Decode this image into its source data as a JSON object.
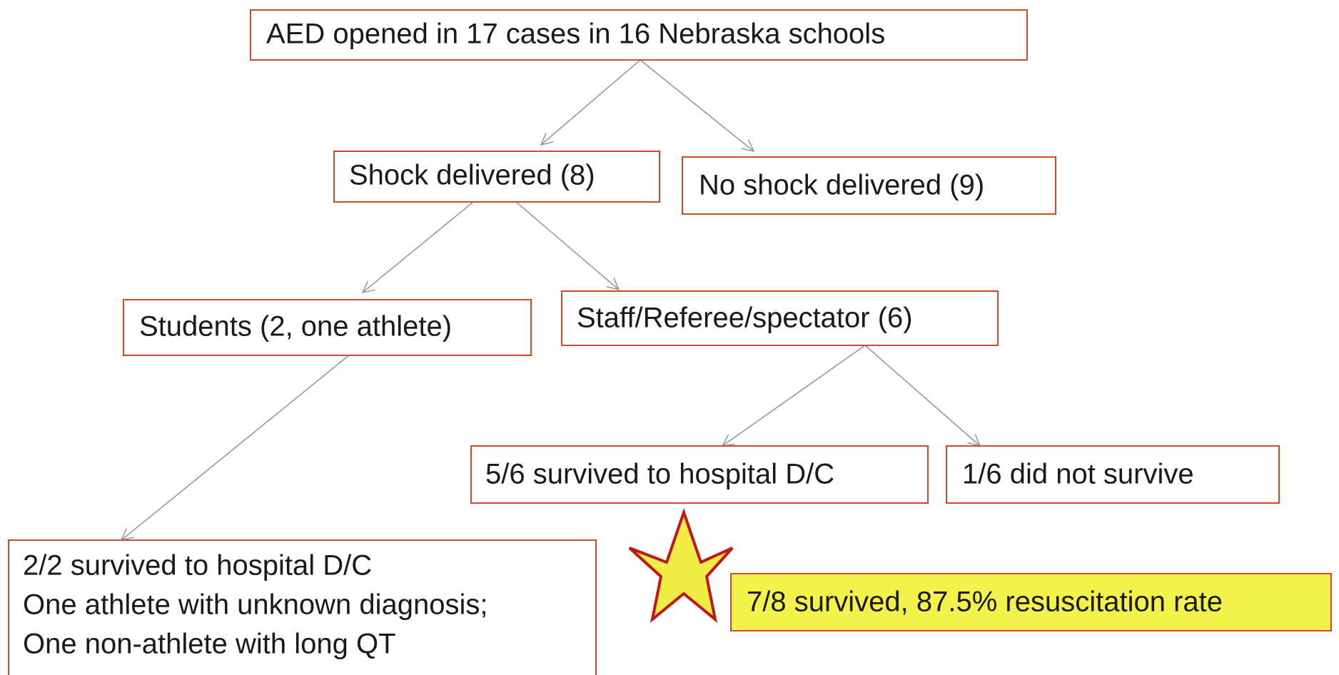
{
  "nodes": [
    {
      "label": "AED opened in 17 cases in 16 Nebraska schools"
    },
    {
      "label": "Shock delivered (8)"
    },
    {
      "label": "No shock delivered (9)"
    },
    {
      "label": "Students (2, one athlete)"
    },
    {
      "label": "Staff/Referee/spectator (6)"
    },
    {
      "label": "5/6 survived to hospital D/C"
    },
    {
      "label": "1/6 did not survive"
    },
    {
      "lines": [
        "2/2 survived to hospital D/C",
        "One athlete with unknown diagnosis;",
        "One non-athlete with long QT"
      ]
    },
    {
      "label": "7/8 survived, 87.5% resuscitation rate"
    }
  ]
}
